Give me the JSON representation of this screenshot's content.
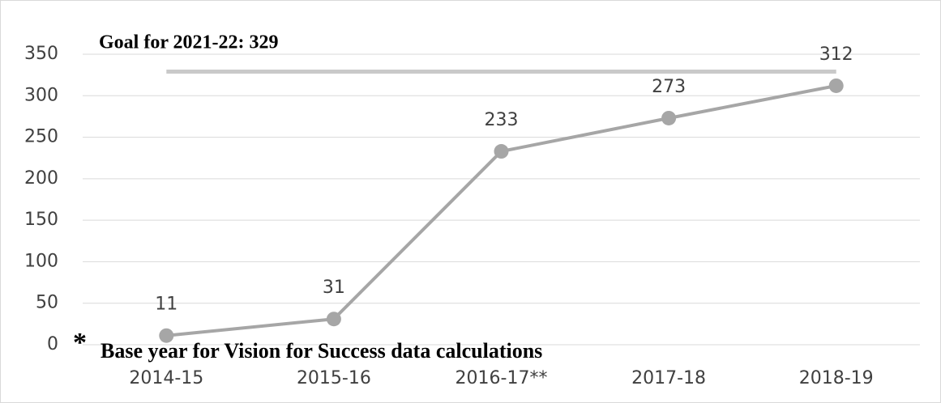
{
  "chart_data": {
    "type": "line",
    "categories": [
      "2014-15",
      "2015-16",
      "2016-17**",
      "2017-18",
      "2018-19"
    ],
    "series": [
      {
        "name": "Value",
        "color": "#a6a6a6",
        "values": [
          11,
          31,
          233,
          273,
          312
        ]
      }
    ],
    "ylim": [
      0,
      350
    ],
    "yticks": [
      0,
      50,
      100,
      150,
      200,
      250,
      300,
      350
    ],
    "grid": true,
    "goal": {
      "label": "Goal for 2021-22: 329",
      "value": 329,
      "color": "#c9c9c9"
    },
    "annotation": {
      "marker": "*",
      "text": "Base year for Vision for Success data calculations"
    }
  }
}
